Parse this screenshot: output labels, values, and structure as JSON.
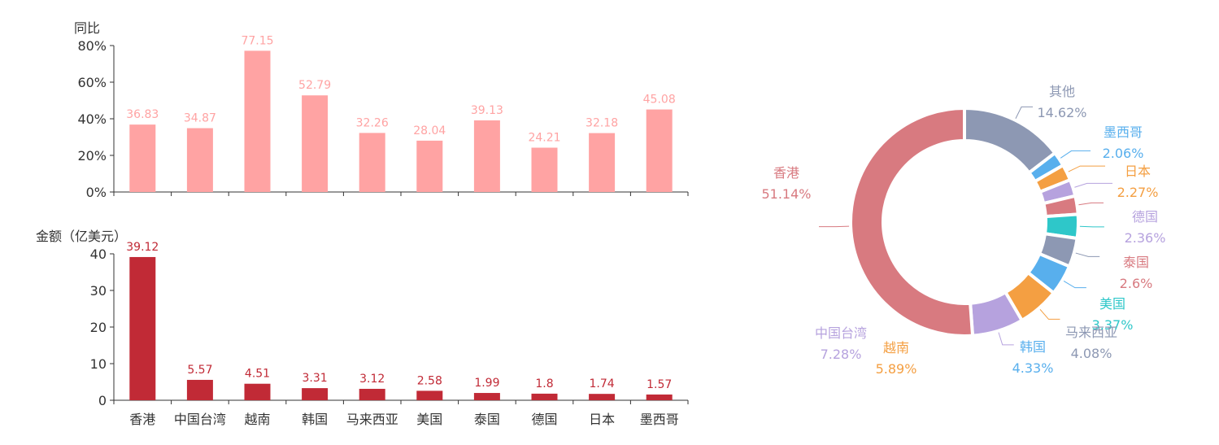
{
  "chart_data": [
    {
      "type": "bar",
      "ylabel": "同比",
      "ylim": [
        0,
        80
      ],
      "y_ticks": [
        "0%",
        "20%",
        "40%",
        "60%",
        "80%"
      ],
      "categories": [
        "香港",
        "中国台湾",
        "越南",
        "韩国",
        "马来西亚",
        "美国",
        "泰国",
        "德国",
        "日本",
        "墨西哥"
      ],
      "values": [
        36.83,
        34.87,
        77.15,
        52.79,
        32.26,
        28.04,
        39.13,
        24.21,
        32.18,
        45.08
      ],
      "value_labels": [
        "36.83",
        "34.87",
        "77.15",
        "52.79",
        "32.26",
        "28.04",
        "39.13",
        "24.21",
        "32.18",
        "45.08"
      ],
      "color": "#ffa3a3"
    },
    {
      "type": "bar",
      "ylabel": "金额（亿美元）",
      "ylim": [
        0,
        40
      ],
      "y_ticks": [
        "0",
        "10",
        "20",
        "30",
        "40"
      ],
      "categories": [
        "香港",
        "中国台湾",
        "越南",
        "韩国",
        "马来西亚",
        "美国",
        "泰国",
        "德国",
        "日本",
        "墨西哥"
      ],
      "x_tick_labels": [
        "香港",
        "中国台湾",
        "越南",
        "韩国",
        "马来西亚",
        "美国",
        "泰国",
        "德国",
        "日本",
        "墨西哥"
      ],
      "values": [
        39.12,
        5.57,
        4.51,
        3.31,
        3.12,
        2.58,
        1.99,
        1.8,
        1.74,
        1.57
      ],
      "value_labels": [
        "39.12",
        "5.57",
        "4.51",
        "3.31",
        "3.12",
        "2.58",
        "1.99",
        "1.8",
        "1.74",
        "1.57"
      ],
      "color": "#c12a36"
    },
    {
      "type": "pie",
      "slices": [
        {
          "name": "其他",
          "value": 14.62,
          "label": "14.62%",
          "color": "#8d98b3"
        },
        {
          "name": "墨西哥",
          "value": 2.06,
          "label": "2.06%",
          "color": "#58afed"
        },
        {
          "name": "日本",
          "value": 2.27,
          "label": "2.27%",
          "color": "#f49f42"
        },
        {
          "name": "德国",
          "value": 2.36,
          "label": "2.36%",
          "color": "#b6a2de"
        },
        {
          "name": "泰国",
          "value": 2.6,
          "label": "2.6%",
          "color": "#d87a80"
        },
        {
          "name": "美国",
          "value": 3.37,
          "label": "3.37%",
          "color": "#2ec7c9"
        },
        {
          "name": "马来西亚",
          "value": 4.08,
          "label": "4.08%",
          "color": "#8d98b3"
        },
        {
          "name": "韩国",
          "value": 4.33,
          "label": "4.33%",
          "color": "#58afed"
        },
        {
          "name": "越南",
          "value": 5.89,
          "label": "5.89%",
          "color": "#f49f42"
        },
        {
          "name": "中国台湾",
          "value": 7.28,
          "label": "7.28%",
          "color": "#b6a2de"
        },
        {
          "name": "香港",
          "value": 51.14,
          "label": "51.14%",
          "color": "#d87a80"
        }
      ]
    }
  ]
}
